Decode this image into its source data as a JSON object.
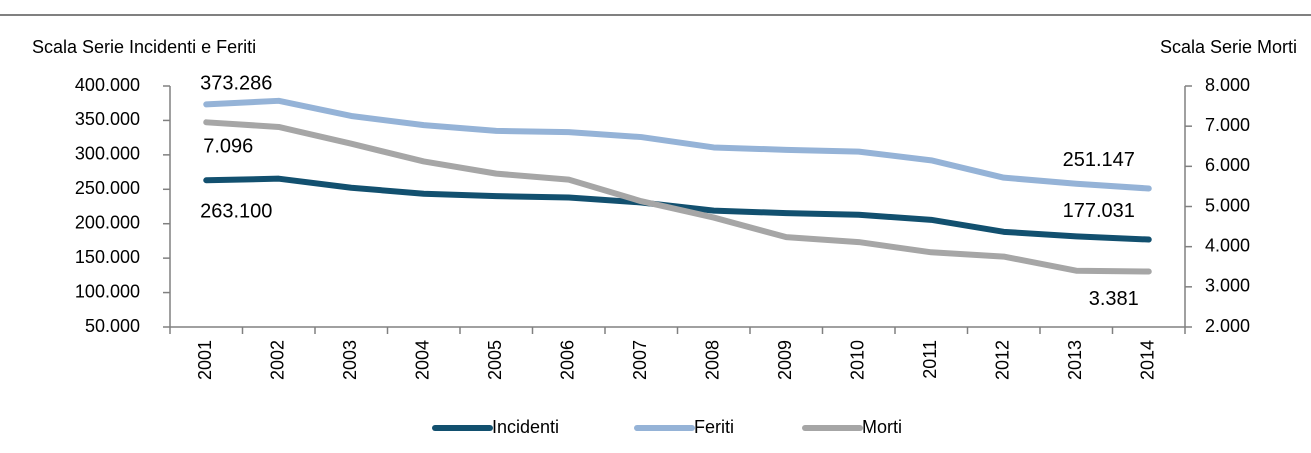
{
  "chart_data": {
    "type": "line",
    "ylabel": "Scala Serie Incidenti e Feriti",
    "y2label": "Scala Serie Morti",
    "categories": [
      "2001",
      "2002",
      "2003",
      "2004",
      "2005",
      "2006",
      "2007",
      "2008",
      "2009",
      "2010",
      "2011",
      "2012",
      "2013",
      "2014"
    ],
    "series": [
      {
        "name": "Incidenti",
        "color": "#12506f",
        "values": [
          263100,
          265402,
          252271,
          243490,
          240011,
          238124,
          230871,
          218963,
          215405,
          212997,
          205638,
          188228,
          181660,
          177031
        ],
        "value_labels": [
          "263.100",
          null,
          null,
          null,
          null,
          null,
          null,
          null,
          null,
          null,
          null,
          null,
          null,
          "177.031"
        ]
      },
      {
        "name": "Feriti",
        "color": "#95b3d7",
        "values": [
          373286,
          378492,
          356475,
          343179,
          334858,
          332955,
          325850,
          310745,
          307258,
          304720,
          292019,
          266864,
          258093,
          251147
        ],
        "value_labels": [
          "373.286",
          null,
          null,
          null,
          null,
          null,
          null,
          null,
          null,
          null,
          null,
          null,
          null,
          "251.147"
        ]
      },
      {
        "name": "Morti",
        "color": "#a6a6a6",
        "axis": "y2",
        "values": [
          7096,
          6980,
          6563,
          6122,
          5818,
          5669,
          5131,
          4725,
          4237,
          4114,
          3860,
          3753,
          3401,
          3381
        ],
        "value_labels": [
          "7.096",
          null,
          null,
          null,
          null,
          null,
          null,
          null,
          null,
          null,
          null,
          null,
          null,
          "3.381"
        ]
      }
    ],
    "ylim": [
      50000,
      400000
    ],
    "yticks": [
      {
        "value": 50000,
        "label": "50.000"
      },
      {
        "value": 100000,
        "label": "100.000"
      },
      {
        "value": 150000,
        "label": "150.000"
      },
      {
        "value": 200000,
        "label": "200.000"
      },
      {
        "value": 250000,
        "label": "250.000"
      },
      {
        "value": 300000,
        "label": "300.000"
      },
      {
        "value": 350000,
        "label": "350.000"
      },
      {
        "value": 400000,
        "label": "400.000"
      }
    ],
    "y2lim": [
      2000,
      8000
    ],
    "y2ticks": [
      {
        "value": 2000,
        "label": "2.000"
      },
      {
        "value": 3000,
        "label": "3.000"
      },
      {
        "value": 4000,
        "label": "4.000"
      },
      {
        "value": 5000,
        "label": "5.000"
      },
      {
        "value": 6000,
        "label": "6.000"
      },
      {
        "value": 7000,
        "label": "7.000"
      },
      {
        "value": 8000,
        "label": "8.000"
      }
    ],
    "legend": "bottom"
  }
}
